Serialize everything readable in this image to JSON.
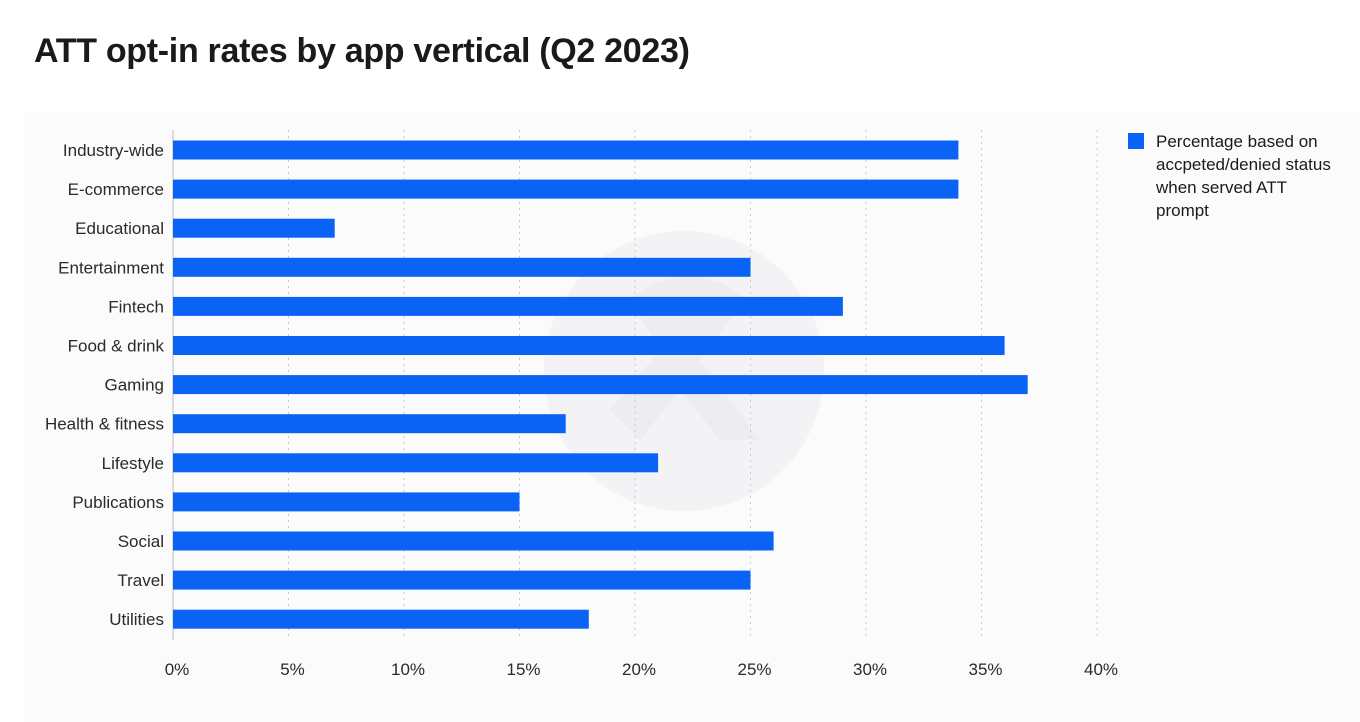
{
  "chart_data": {
    "type": "bar",
    "orientation": "horizontal",
    "title": "ATT opt-in rates by app vertical (Q2 2023)",
    "xlabel": "",
    "ylabel": "",
    "xlim": [
      0,
      40
    ],
    "x_ticks": [
      0,
      5,
      10,
      15,
      20,
      25,
      30,
      35,
      40
    ],
    "x_tick_labels": [
      "0%",
      "5%",
      "10%",
      "15%",
      "20%",
      "25%",
      "30%",
      "35%",
      "40%"
    ],
    "grid": "vertical dotted",
    "legend_position": "top-right",
    "categories": [
      "Industry-wide",
      "E-commerce",
      "Educational",
      "Entertainment",
      "Fintech",
      "Food & drink",
      "Gaming",
      "Health & fitness",
      "Lifestyle",
      "Publications",
      "Social",
      "Travel",
      "Utilities"
    ],
    "series": [
      {
        "name": "Percentage based on accpeted/denied status when served ATT prompt",
        "color": "#0a63f5",
        "values": [
          34,
          34,
          7,
          25,
          29,
          36,
          37,
          17,
          21,
          15,
          26,
          25,
          18
        ]
      }
    ]
  }
}
